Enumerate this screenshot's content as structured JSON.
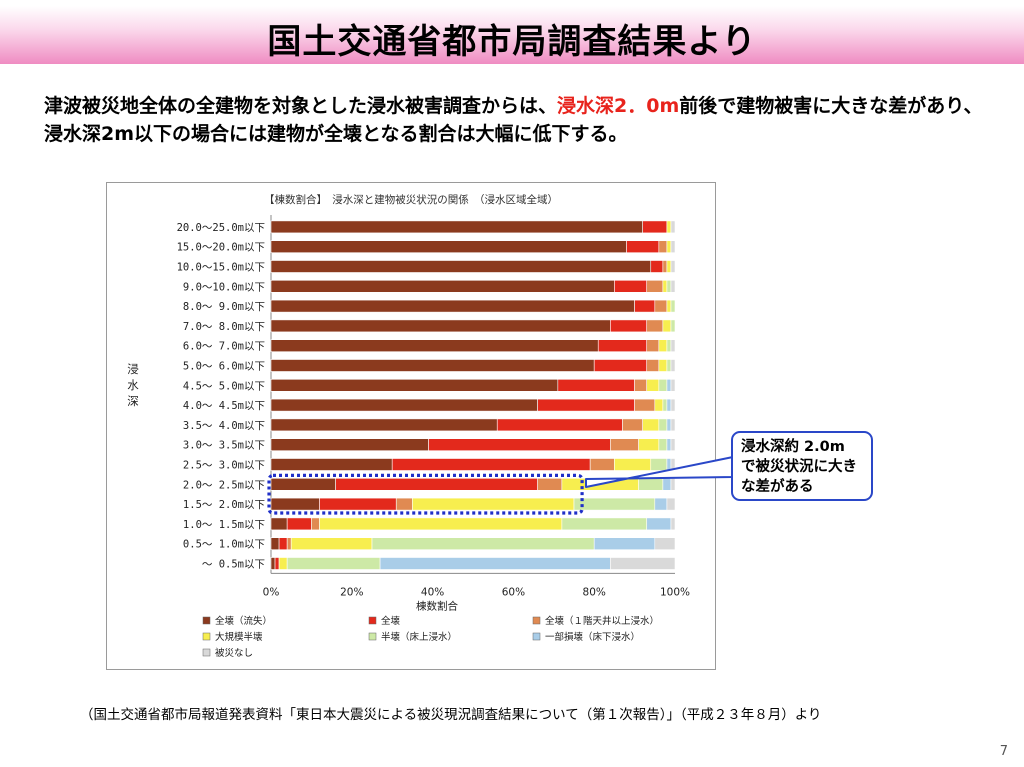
{
  "slide": {
    "title": "国土交通省都市局調査結果より",
    "summary_part1": "津波被災地全体の全建物を対象とした浸水被害調査からは、",
    "summary_highlight": "浸水深2．0m",
    "summary_part2": "前後で建物被害に大きな差があり、浸水深2m以下の場合には建物が全壊となる割合は大幅に低下する。",
    "callout": "浸水深約 2.0m で被災状況に大きな差がある",
    "source": "（国土交通省都市局報道発表資料「東日本大震災による被災現況調査結果について（第１次報告）」（平成２３年８月）より",
    "page_number": "7"
  },
  "chart_data": {
    "type": "bar",
    "orientation": "horizontal",
    "stacked": true,
    "title": "【棟数割合】　浸水深と建物被災状況の関係　（浸水区域全域）",
    "ylabel": "浸水深",
    "xlabel": "棟数割合",
    "xlim": [
      0,
      100
    ],
    "x_ticks": [
      "0%",
      "20%",
      "40%",
      "60%",
      "80%",
      "100%"
    ],
    "grid": false,
    "legend_position": "bottom",
    "highlighted_categories": [
      "2.0～ 2.5m以下",
      "1.5～ 2.0m以下"
    ],
    "categories": [
      "20.0～25.0m以下",
      "15.0～20.0m以下",
      "10.0～15.0m以下",
      "9.0～10.0m以下",
      "8.0～ 9.0m以下",
      "7.0～ 8.0m以下",
      "6.0～ 7.0m以下",
      "5.0～ 6.0m以下",
      "4.5～ 5.0m以下",
      "4.0～ 4.5m以下",
      "3.5～ 4.0m以下",
      "3.0～ 3.5m以下",
      "2.5～ 3.0m以下",
      "2.0～ 2.5m以下",
      "1.5～ 2.0m以下",
      "1.0～ 1.5m以下",
      "0.5～ 1.0m以下",
      "～ 0.5m以下"
    ],
    "series": [
      {
        "name": "全壊（流失）",
        "color": "#8b3a1e",
        "values": [
          92,
          88,
          94,
          85,
          90,
          84,
          81,
          80,
          71,
          66,
          56,
          39,
          30,
          16,
          12,
          4,
          2,
          1
        ]
      },
      {
        "name": "全壊",
        "color": "#e3291c",
        "values": [
          6,
          8,
          3,
          8,
          5,
          9,
          12,
          13,
          19,
          24,
          31,
          45,
          49,
          50,
          19,
          6,
          2,
          1
        ]
      },
      {
        "name": "全壊（１階天井以上浸水）",
        "color": "#e08a52",
        "values": [
          0,
          2,
          1,
          4,
          3,
          4,
          3,
          3,
          3,
          5,
          5,
          7,
          6,
          6,
          4,
          2,
          1,
          0
        ]
      },
      {
        "name": "大規模半壊",
        "color": "#f7ee4f",
        "values": [
          1,
          1,
          1,
          1,
          1,
          2,
          2,
          2,
          3,
          2,
          4,
          5,
          9,
          19,
          40,
          60,
          20,
          2
        ]
      },
      {
        "name": "半壊（床上浸水）",
        "color": "#cde9a6",
        "values": [
          0,
          0,
          0,
          1,
          1,
          1,
          1,
          1,
          2,
          1,
          2,
          2,
          4,
          6,
          20,
          21,
          55,
          23
        ]
      },
      {
        "name": "一部損壊（床下浸水）",
        "color": "#a9cde8",
        "values": [
          0,
          0,
          0,
          0,
          0,
          0,
          0,
          0,
          1,
          1,
          1,
          1,
          1,
          2,
          3,
          6,
          15,
          57
        ]
      },
      {
        "name": "被災なし",
        "color": "#d9d9d9",
        "values": [
          1,
          1,
          1,
          1,
          0,
          0,
          1,
          1,
          1,
          1,
          1,
          1,
          1,
          1,
          2,
          1,
          5,
          16
        ]
      }
    ]
  }
}
